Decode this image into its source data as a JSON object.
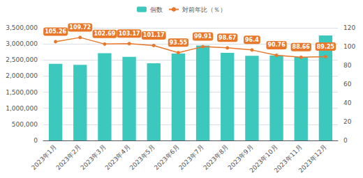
{
  "chart_data": {
    "type": "bar",
    "categories": [
      "2023年1月",
      "2023年2月",
      "2023年3月",
      "2023年4月",
      "2023年5月",
      "2023年6月",
      "2023年7月",
      "2023年8月",
      "2023年9月",
      "2023年10月",
      "2023年11月",
      "2023年12月"
    ],
    "series": [
      {
        "name": "個数",
        "type": "bar",
        "color": "#3DC8BE",
        "values": [
          2380000,
          2350000,
          2710000,
          2600000,
          2400000,
          2700000,
          2950000,
          2720000,
          2630000,
          2640000,
          2590000,
          3260000
        ]
      },
      {
        "name": "対前年比（％）",
        "type": "line",
        "axis": "y2",
        "color": "#E8782A",
        "marker": "circle",
        "data_labels": true,
        "values": [
          105.26,
          109.72,
          102.69,
          103.17,
          101.17,
          93.55,
          99.91,
          98.67,
          96.4,
          90.76,
          88.66,
          89.25
        ]
      }
    ],
    "ylim": [
      0,
      3500000
    ],
    "yticks": [
      0,
      {
        "value": 500000,
        "label": "500,000"
      },
      {
        "value": 1000000,
        "label": "1,000,000"
      },
      {
        "value": 1500000,
        "label": "1,500,000"
      },
      {
        "value": 2000000,
        "label": "2,000,000"
      },
      {
        "value": 2500000,
        "label": "2,500,000"
      },
      {
        "value": 3000000,
        "label": "3,000,000"
      },
      {
        "value": 3500000,
        "label": "3,500,000"
      }
    ],
    "y2lim": [
      0,
      120
    ],
    "y2ticks": [
      0,
      20,
      40,
      60,
      80,
      100,
      120
    ],
    "grid": true,
    "legend": "top"
  }
}
